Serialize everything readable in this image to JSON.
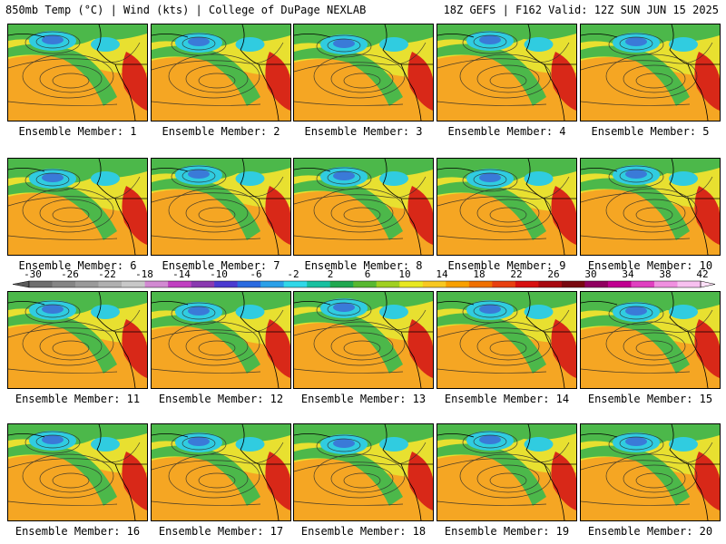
{
  "header": {
    "left": "850mb Temp (°C) | Wind (kts) | College of DuPage NEXLAB",
    "right": "18Z GEFS | F162 Valid: 12Z SUN JUN 15 2025"
  },
  "member_label_prefix": "Ensemble Member: ",
  "members": [
    {
      "label": "Ensemble Member: 1"
    },
    {
      "label": "Ensemble Member: 2"
    },
    {
      "label": "Ensemble Member: 3"
    },
    {
      "label": "Ensemble Member: 4"
    },
    {
      "label": "Ensemble Member: 5"
    },
    {
      "label": "Ensemble Member: 6"
    },
    {
      "label": "Ensemble Member: 7"
    },
    {
      "label": "Ensemble Member: 8"
    },
    {
      "label": "Ensemble Member: 9"
    },
    {
      "label": "Ensemble Member: 10"
    },
    {
      "label": "Ensemble Member: 11"
    },
    {
      "label": "Ensemble Member: 12"
    },
    {
      "label": "Ensemble Member: 13"
    },
    {
      "label": "Ensemble Member: 14"
    },
    {
      "label": "Ensemble Member: 15"
    },
    {
      "label": "Ensemble Member: 16"
    },
    {
      "label": "Ensemble Member: 17"
    },
    {
      "label": "Ensemble Member: 18"
    },
    {
      "label": "Ensemble Member: 19"
    },
    {
      "label": "Ensemble Member: 20"
    }
  ],
  "colorbar": {
    "ticks": [
      "-30",
      "-26",
      "-22",
      "-18",
      "-14",
      "-10",
      "-6",
      "-2",
      "2",
      "6",
      "10",
      "14",
      "18",
      "22",
      "26",
      "30",
      "34",
      "38",
      "42"
    ],
    "colors": [
      "#6e6e6e",
      "#858585",
      "#9a9a9a",
      "#b0b0b0",
      "#c8c8c8",
      "#d28ad2",
      "#c040c0",
      "#8a3ab0",
      "#4a3ad0",
      "#2a6ae0",
      "#2aa0e8",
      "#30d8e8",
      "#18c0a0",
      "#20a850",
      "#58b830",
      "#a0d020",
      "#e8e820",
      "#f8c820",
      "#f8a000",
      "#f07000",
      "#e84010",
      "#d81010",
      "#a80810",
      "#780810",
      "#900060",
      "#c00090",
      "#e040c0",
      "#f090e0",
      "#f8c0f0"
    ]
  },
  "map_colors": {
    "warm": "#f5a623",
    "yellow": "#e8e030",
    "green": "#4cb84a",
    "cyan": "#30cce0",
    "blue": "#3a7ad8",
    "red": "#d82818",
    "land_line": "#000000"
  }
}
